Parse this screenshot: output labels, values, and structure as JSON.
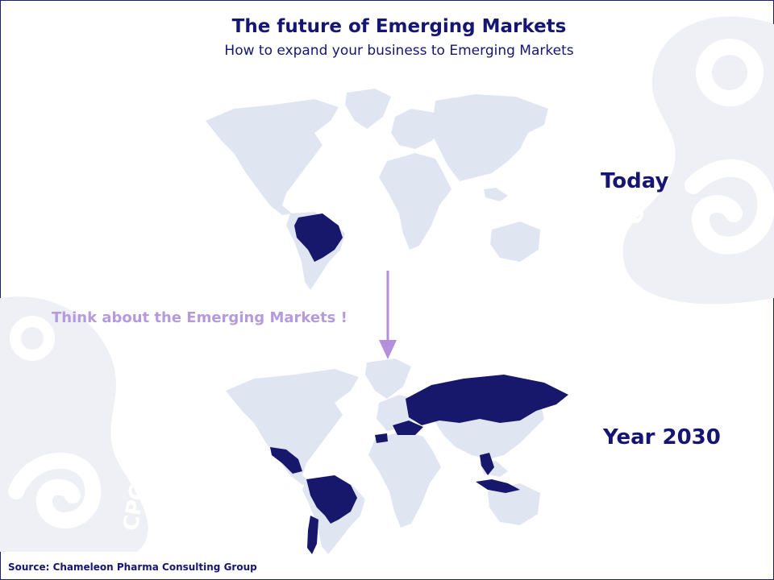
{
  "slide": {
    "title": "The future of Emerging Markets",
    "subtitle": "How to expand your business to Emerging Markets",
    "label_today": "Today",
    "label_2030": "Year 2030",
    "callout": "Think about the Emerging Markets !",
    "source": "Source:  Chameleon Pharma Consulting Group",
    "watermark_text": "CPC"
  },
  "maps": {
    "today": {
      "label": "Today",
      "highlighted_countries": [
        "Brazil"
      ]
    },
    "year_2030": {
      "label": "Year 2030",
      "highlighted_countries": [
        "Brazil",
        "Mexico",
        "Colombia",
        "Venezuela",
        "Peru",
        "Argentina",
        "Chile",
        "Russia",
        "Turkey",
        "Spain",
        "Ukraine",
        "Kazakhstan",
        "Thailand",
        "Vietnam",
        "Indonesia",
        "Philippines"
      ]
    }
  },
  "colors": {
    "title": "#151573",
    "highlight": "#17176b",
    "land": "#e0e6f1",
    "callout": "#b59bdc",
    "arrow": "#b48fdc",
    "watermark": "#eef0f5"
  }
}
